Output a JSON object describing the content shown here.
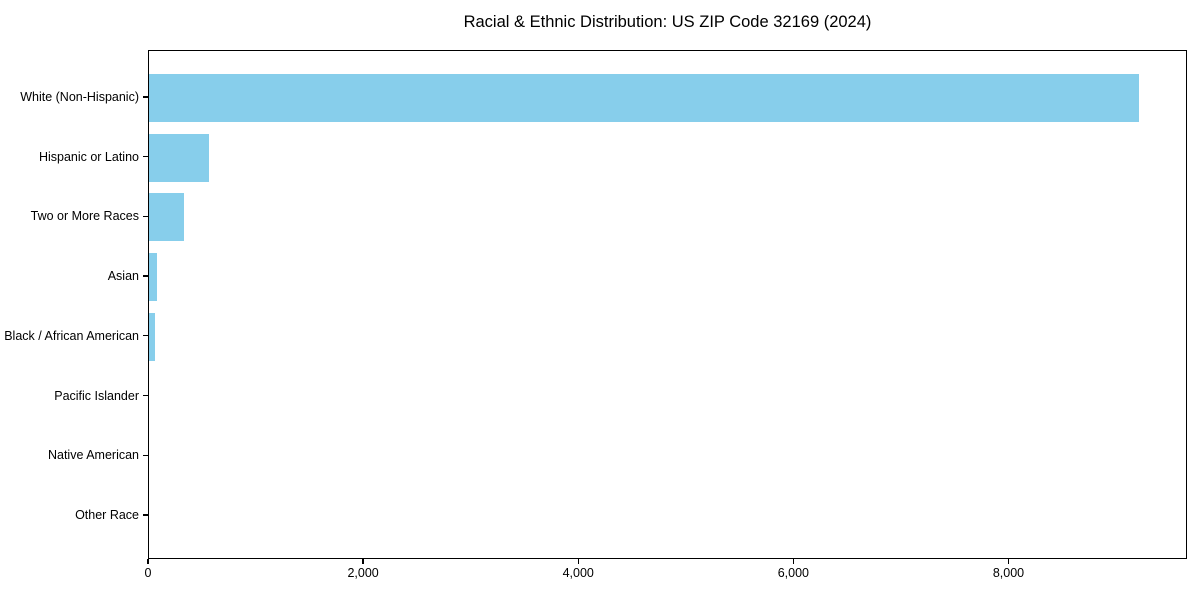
{
  "title": "Racial & Ethnic Distribution: US ZIP Code 32169 (2024)",
  "colors": {
    "bar_fill": "#87CEEB",
    "text": "#000000",
    "axis": "#000000",
    "background": "#FFFFFF"
  },
  "chart_data": {
    "type": "bar",
    "orientation": "horizontal",
    "title": "Racial & Ethnic Distribution: US ZIP Code 32169 (2024)",
    "categories": [
      "White (Non-Hispanic)",
      "Hispanic or Latino",
      "Two or More Races",
      "Asian",
      "Black / African American",
      "Pacific Islander",
      "Native American",
      "Other Race"
    ],
    "values": [
      9200,
      560,
      330,
      70,
      60,
      0,
      0,
      0
    ],
    "xlabel": "",
    "ylabel": "",
    "xlim": [
      0,
      9660
    ],
    "xticks": [
      0,
      2000,
      4000,
      6000,
      8000
    ],
    "xtick_labels": [
      "0",
      "2,000",
      "4,000",
      "6,000",
      "8,000"
    ],
    "grid": false,
    "legend": false,
    "bar_color": "#87CEEB"
  }
}
